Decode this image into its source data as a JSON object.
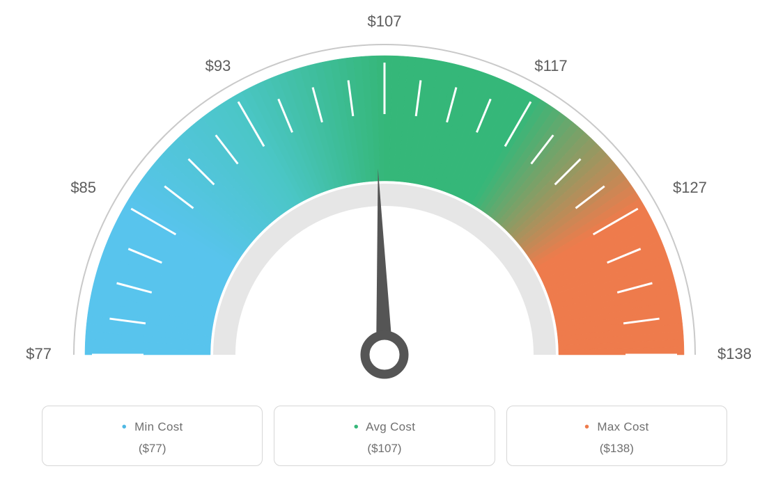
{
  "gauge": {
    "type": "gauge",
    "background_color": "#ffffff",
    "outer_arc": {
      "stroke": "#c9c9c9",
      "width": 2
    },
    "arc_band": {
      "r_outer": 430,
      "r_inner": 250,
      "segments": [
        {
          "start_deg": 180,
          "end_deg": 150,
          "c1": "#58c4ed",
          "c2": "#58c4ed"
        },
        {
          "start_deg": 150,
          "end_deg": 120,
          "c1": "#58c4ed",
          "c2": "#4bc6c6"
        },
        {
          "start_deg": 120,
          "end_deg": 90,
          "c1": "#4bc6c6",
          "c2": "#35b779"
        },
        {
          "start_deg": 90,
          "end_deg": 60,
          "c1": "#35b779",
          "c2": "#35b779"
        },
        {
          "start_deg": 60,
          "end_deg": 30,
          "c1": "#35b779",
          "c2": "#ee7b4c"
        },
        {
          "start_deg": 30,
          "end_deg": 0,
          "c1": "#ee7b4c",
          "c2": "#ee7b4c"
        }
      ]
    },
    "inner_arc": {
      "stroke": "#e6e6e6",
      "width": 32
    },
    "ticks": {
      "count": 25,
      "start_deg": 180,
      "end_deg": 0,
      "major_every": 4,
      "inner_r": 346,
      "outer_r_major": 420,
      "outer_r_minor": 398,
      "stroke": "#ffffff",
      "width": 3
    },
    "labels": {
      "values": [
        "$77",
        "$85",
        "$93",
        "$107",
        "$117",
        "$127",
        "$138"
      ],
      "positions_deg": [
        180,
        150,
        120,
        90,
        60,
        30,
        0
      ],
      "radius": 478,
      "color": "#5c5c5c",
      "fontsize": 22
    },
    "needle": {
      "angle_deg": 92,
      "fill": "#555555",
      "stroke": "#555555",
      "ring_r_outer": 28,
      "ring_r_inner": 15,
      "length": 268,
      "base_halfwidth": 12
    }
  },
  "legend": {
    "min": {
      "label": "Min Cost",
      "bullet_color": "#4fb8e3",
      "value_text": "($77)"
    },
    "avg": {
      "label": "Avg Cost",
      "bullet_color": "#35b779",
      "value_text": "($107)"
    },
    "max": {
      "label": "Max Cost",
      "bullet_color": "#ee7b4c",
      "value_text": "($138)"
    },
    "label_color": "#6f6f6f",
    "value_color": "#6f6f6f",
    "card_border_color": "#d6d6d6",
    "card_border_radius": 10,
    "title_fontsize": 17,
    "value_fontsize": 17
  }
}
